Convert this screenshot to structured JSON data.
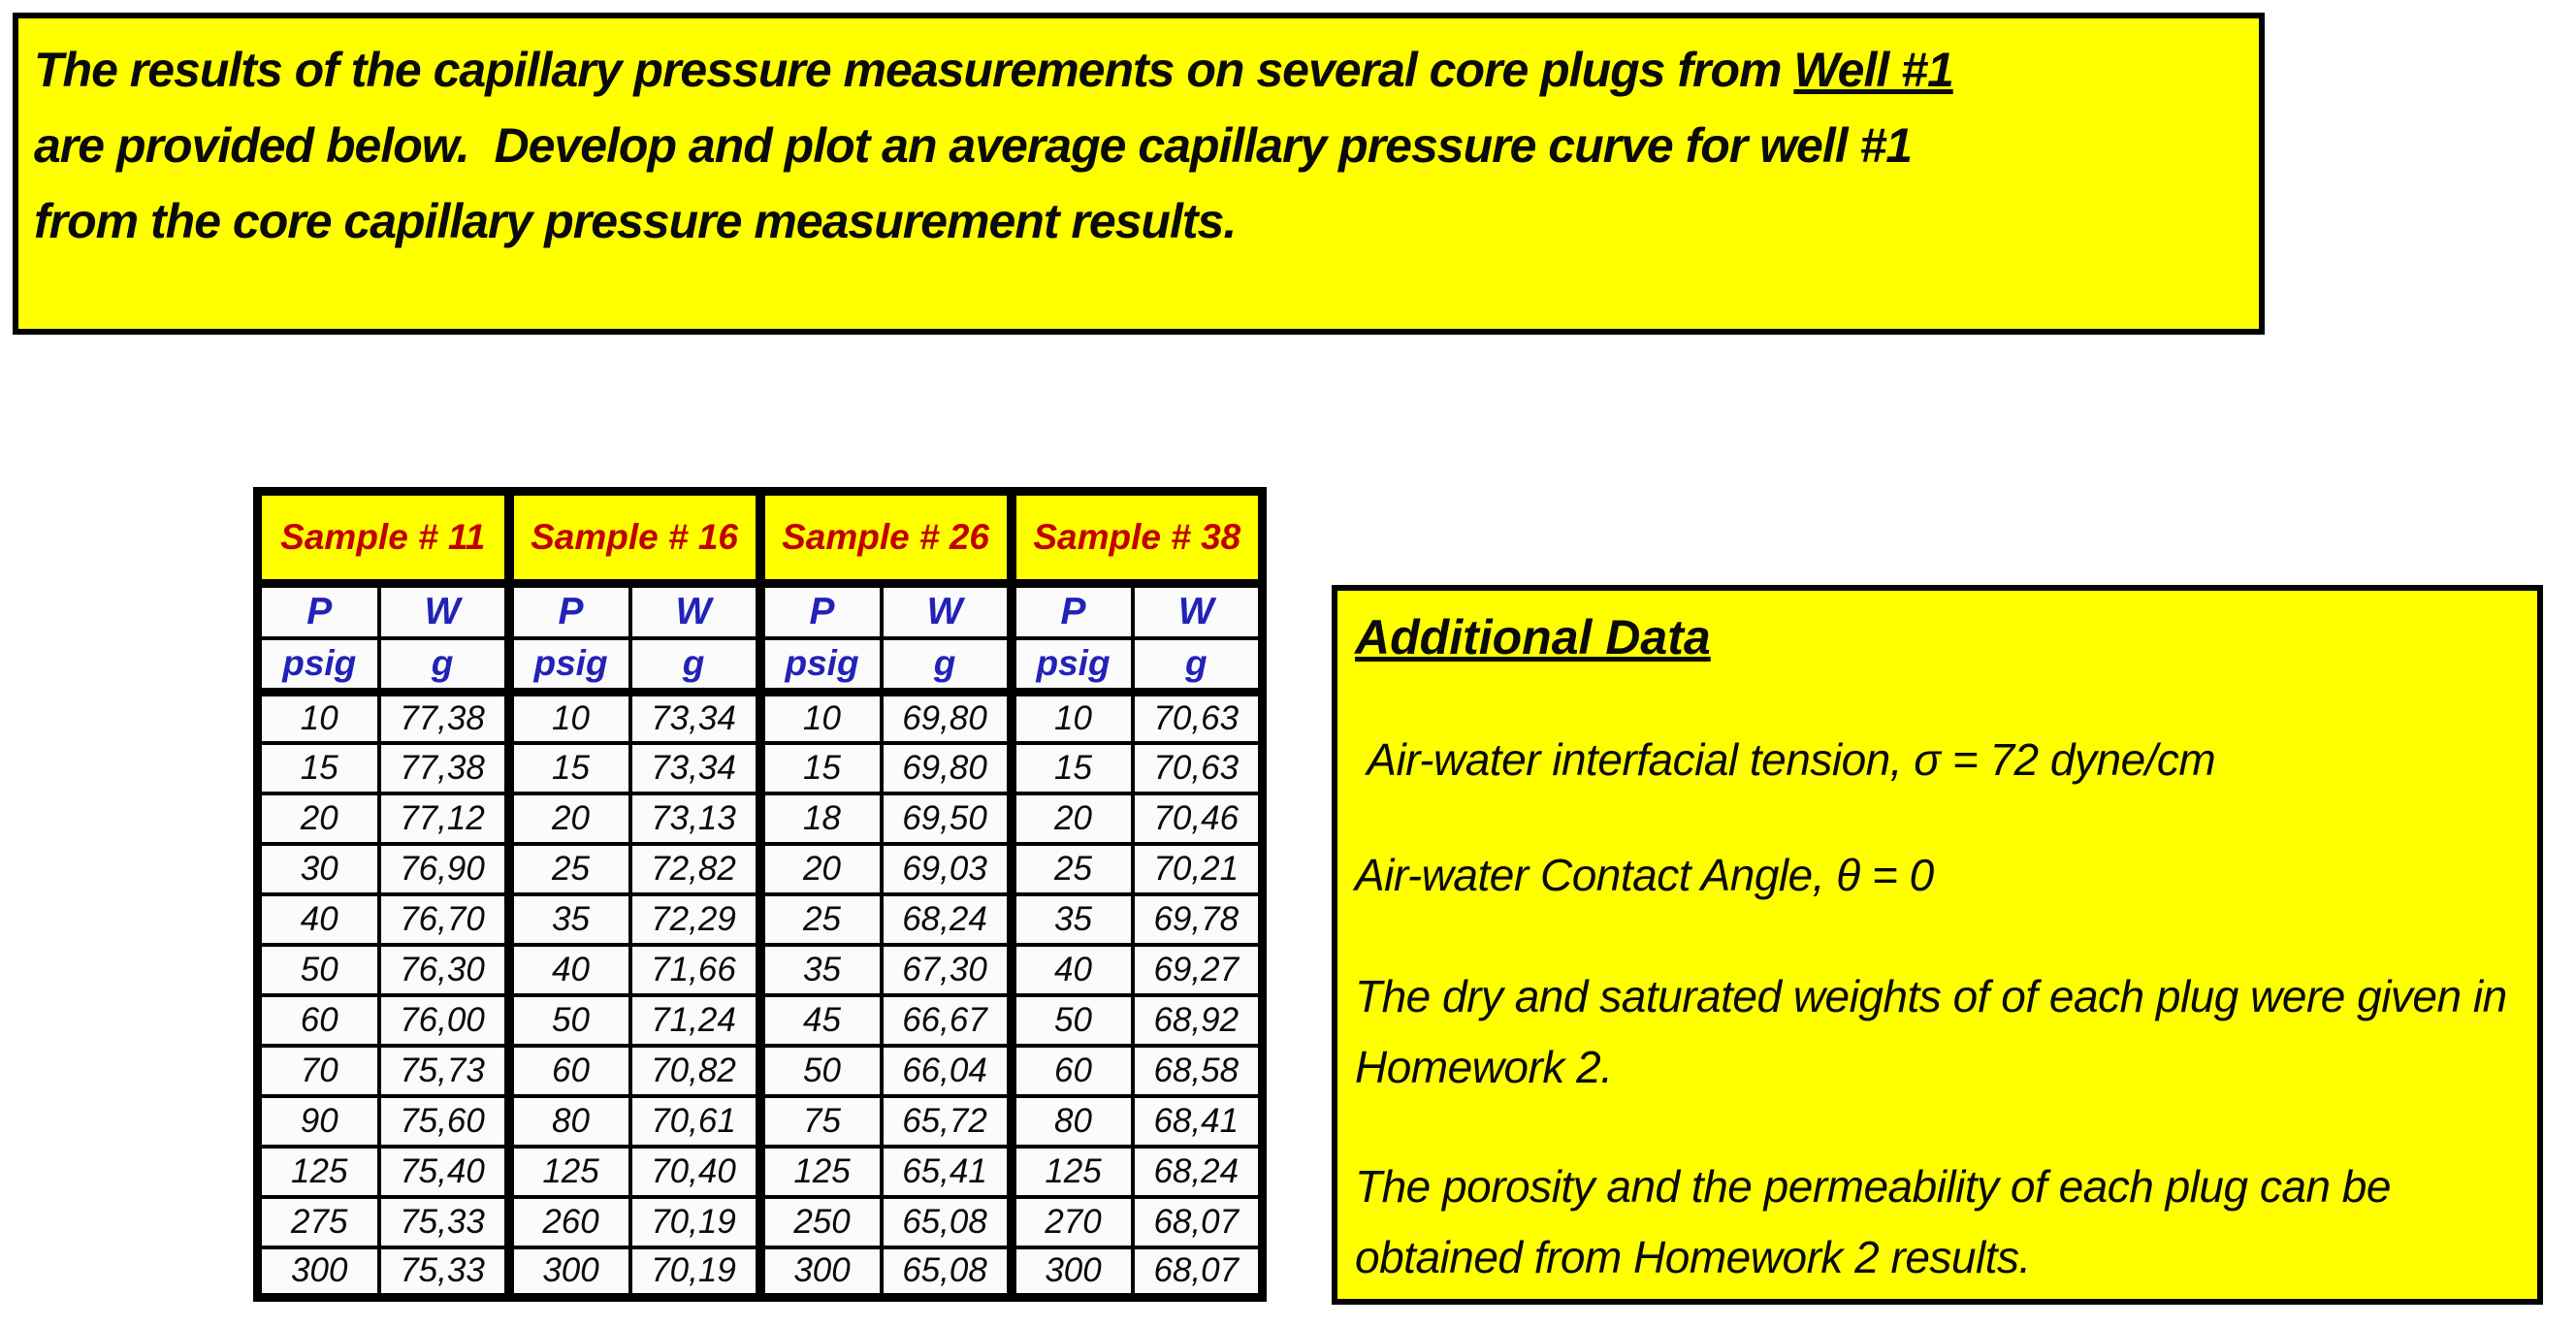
{
  "colors": {
    "highlight_yellow": "#ffff00",
    "sample_label_red": "#c00000",
    "column_header_blue": "#2222b8",
    "border_black": "#000000"
  },
  "banner": {
    "line1_prefix": "The results of the capillary pressure measurements on several core plugs from ",
    "line1_underlined": "Well #1",
    "line2": "are provided below.  Develop and plot an average capillary pressure curve for well #1",
    "line3": "from the core capillary pressure measurement results."
  },
  "table": {
    "samples": [
      "Sample # 11",
      "Sample # 16",
      "Sample # 26",
      "Sample # 38"
    ],
    "col_headers": {
      "pressure": "P",
      "weight": "W",
      "pressure_unit": "psig",
      "weight_unit": "g"
    },
    "rows": [
      [
        "10",
        "77,38",
        "10",
        "73,34",
        "10",
        "69,80",
        "10",
        "70,63"
      ],
      [
        "15",
        "77,38",
        "15",
        "73,34",
        "15",
        "69,80",
        "15",
        "70,63"
      ],
      [
        "20",
        "77,12",
        "20",
        "73,13",
        "18",
        "69,50",
        "20",
        "70,46"
      ],
      [
        "30",
        "76,90",
        "25",
        "72,82",
        "20",
        "69,03",
        "25",
        "70,21"
      ],
      [
        "40",
        "76,70",
        "35",
        "72,29",
        "25",
        "68,24",
        "35",
        "69,78"
      ],
      [
        "50",
        "76,30",
        "40",
        "71,66",
        "35",
        "67,30",
        "40",
        "69,27"
      ],
      [
        "60",
        "76,00",
        "50",
        "71,24",
        "45",
        "66,67",
        "50",
        "68,92"
      ],
      [
        "70",
        "75,73",
        "60",
        "70,82",
        "50",
        "66,04",
        "60",
        "68,58"
      ],
      [
        "90",
        "75,60",
        "80",
        "70,61",
        "75",
        "65,72",
        "80",
        "68,41"
      ],
      [
        "125",
        "75,40",
        "125",
        "70,40",
        "125",
        "65,41",
        "125",
        "68,24"
      ],
      [
        "275",
        "75,33",
        "260",
        "70,19",
        "250",
        "65,08",
        "270",
        "68,07"
      ],
      [
        "300",
        "75,33",
        "300",
        "70,19",
        "300",
        "65,08",
        "300",
        "68,07"
      ]
    ]
  },
  "additional": {
    "title": "Additional Data",
    "items": [
      " Air-water interfacial tension, σ = 72 dyne/cm",
      "Air-water Contact Angle, θ = 0",
      "The dry and saturated weights of of each plug were given in Homework 2.",
      "The porosity and the permeability of each plug can be obtained from Homework 2 results."
    ]
  }
}
